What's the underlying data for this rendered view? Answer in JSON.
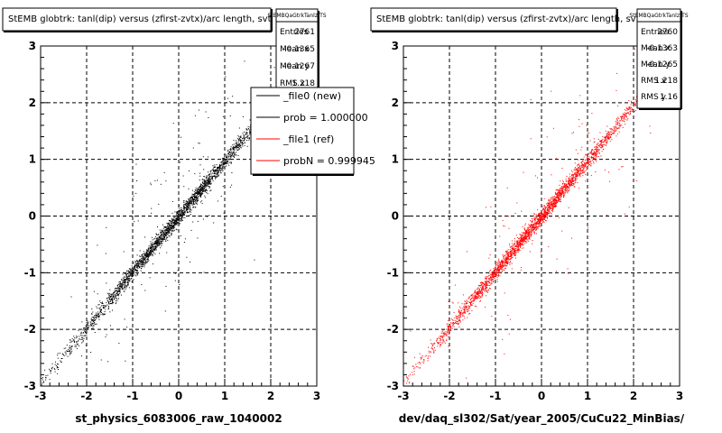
{
  "footer": "",
  "chart_data": [
    {
      "type": "scatter",
      "title": "StEMB globtrk: tanl(dip) versus (zfirst-zvtx)/arc length, svt",
      "xlabel": "st_physics_6083006_raw_1040002",
      "ylabel": "",
      "xlim": [
        -3,
        3
      ],
      "ylim": [
        -3,
        3
      ],
      "xticks": [
        "-3",
        "-2",
        "-1",
        "0",
        "1",
        "2",
        "3"
      ],
      "yticks": [
        "-3",
        "-2",
        "-1",
        "0",
        "1",
        "2",
        "3"
      ],
      "grid": true,
      "marker_color": "#000000",
      "distribution": {
        "relation": "y = x",
        "entries": 2761,
        "mean_x": -0.1365,
        "mean_y": -0.1267,
        "rms_x": 1.218
      },
      "stats": {
        "name": "StEMBQaGtrkTanlzfTS",
        "rows": [
          {
            "label": "Entries",
            "value": "2761"
          },
          {
            "label": "Mean x",
            "value": "-0.1365"
          },
          {
            "label": "Mean y",
            "value": "-0.1267"
          },
          {
            "label": "RMS x",
            "value": "1.218"
          }
        ]
      },
      "legend": {
        "placement": "top-right",
        "entries": [
          {
            "label": "_file0 (new)",
            "color": "#000000"
          },
          {
            "label": "prob = 1.000000",
            "color": "#000000"
          },
          {
            "label": "_file1 (ref)",
            "color": "#ff0000"
          },
          {
            "label": "probN = 0.999945",
            "color": "#ff0000"
          }
        ]
      }
    },
    {
      "type": "scatter",
      "title": "StEMB globtrk: tanl(dip) versus (zfirst-zvtx)/arc length, svt",
      "xlabel": "dev/daq_sl302/Sat/year_2005/CuCu22_MinBias/",
      "ylabel": "",
      "xlim": [
        -3,
        3
      ],
      "ylim": [
        -3,
        3
      ],
      "xticks": [
        "-3",
        "-2",
        "-1",
        "0",
        "1",
        "2",
        "3"
      ],
      "yticks": [
        "-3",
        "-2",
        "-1",
        "0",
        "1",
        "2",
        "3"
      ],
      "grid": true,
      "marker_color": "#ff0000",
      "distribution": {
        "relation": "y = x",
        "entries": 2760,
        "mean_x": -0.1363,
        "mean_y": -0.1265,
        "rms_x": 1.218,
        "rms_y": 1.16
      },
      "stats": {
        "name": "StEMBQaGtrkTanlzfTS",
        "rows": [
          {
            "label": "Entries",
            "value": "2760"
          },
          {
            "label": "Mean x",
            "value": "-0.1363"
          },
          {
            "label": "Mean y",
            "value": "-0.1265"
          },
          {
            "label": "RMS x",
            "value": "1.218"
          },
          {
            "label": "RMS y",
            "value": "1.16"
          }
        ]
      }
    }
  ]
}
